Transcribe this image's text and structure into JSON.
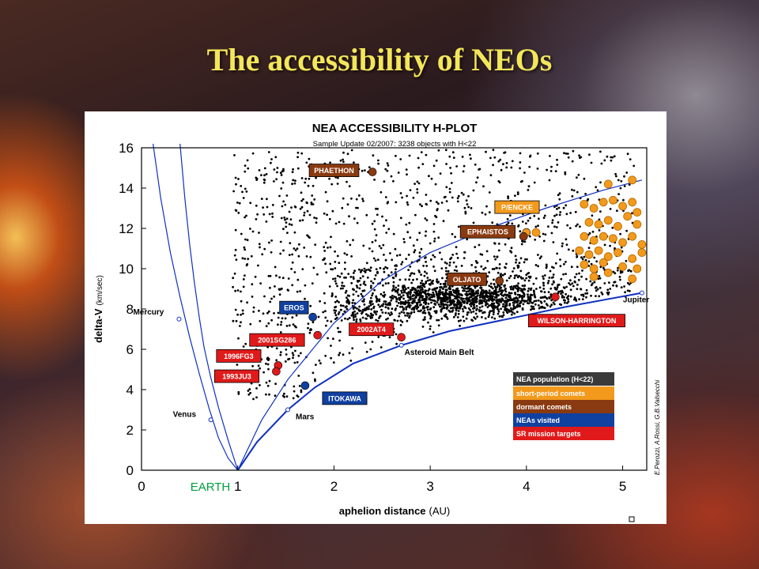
{
  "slide": {
    "title": "The accessibility of NEOs"
  },
  "chart_data": {
    "type": "scatter",
    "title": "NEA ACCESSIBILITY H-PLOT",
    "subtitle": "Sample Update 02/2007: 3238 objects with H<22",
    "xlabel": "aphelion distance",
    "xlabel_unit": "(AU)",
    "ylabel": "delta-V",
    "ylabel_unit": "(km/sec)",
    "xlim": [
      0,
      5.25
    ],
    "ylim": [
      0,
      16
    ],
    "x_ticks": [
      "0",
      "1",
      "2",
      "3",
      "4",
      "5"
    ],
    "y_ticks": [
      "0",
      "2",
      "4",
      "6",
      "8",
      "10",
      "12",
      "14",
      "16"
    ],
    "x_tick_values": [
      0,
      1,
      2,
      3,
      4,
      5
    ],
    "y_tick_values": [
      0,
      2,
      4,
      6,
      8,
      10,
      12,
      14,
      16
    ],
    "grid": false,
    "origin_label": "EARTH",
    "planets": [
      {
        "name": "Mercury",
        "x": 0.39,
        "y": 7.5
      },
      {
        "name": "Venus",
        "x": 0.72,
        "y": 2.5
      },
      {
        "name": "Mars",
        "x": 1.52,
        "y": 3.0
      },
      {
        "name": "Jupiter",
        "x": 5.2,
        "y": 8.8
      },
      {
        "name": "Asteroid Main Belt",
        "x": 2.7,
        "y": 6.2
      }
    ],
    "curves": [
      {
        "points": [
          [
            0.12,
            16.2
          ],
          [
            0.2,
            13.5
          ],
          [
            0.3,
            10.8
          ],
          [
            0.4,
            8.6
          ],
          [
            0.5,
            6.6
          ],
          [
            0.6,
            4.8
          ],
          [
            0.7,
            3.1
          ],
          [
            0.8,
            1.6
          ],
          [
            0.9,
            0.6
          ],
          [
            1.0,
            0
          ]
        ]
      },
      {
        "points": [
          [
            0.4,
            16.2
          ],
          [
            0.45,
            13.5
          ],
          [
            0.5,
            11.2
          ],
          [
            0.55,
            9.3
          ],
          [
            0.6,
            7.6
          ],
          [
            0.65,
            6.1
          ],
          [
            0.72,
            4.6
          ],
          [
            0.8,
            3.1
          ],
          [
            0.9,
            1.5
          ],
          [
            1.0,
            0
          ]
        ]
      },
      {
        "points": [
          [
            1.0,
            0
          ],
          [
            1.2,
            1.4
          ],
          [
            1.52,
            3.0
          ],
          [
            1.8,
            4.1
          ],
          [
            2.2,
            5.3
          ],
          [
            2.7,
            6.2
          ],
          [
            3.2,
            6.9
          ],
          [
            3.8,
            7.5
          ],
          [
            4.4,
            8.1
          ],
          [
            5.2,
            8.8
          ]
        ]
      },
      {
        "points": [
          [
            1.0,
            0
          ],
          [
            1.25,
            2.5
          ],
          [
            1.52,
            4.5
          ],
          [
            2.0,
            7.3
          ],
          [
            2.5,
            9.4
          ],
          [
            3.0,
            10.8
          ],
          [
            3.6,
            12.0
          ],
          [
            4.2,
            13.0
          ],
          [
            4.8,
            13.9
          ],
          [
            5.2,
            14.4
          ]
        ]
      }
    ],
    "point_color": "#000000",
    "named_objects": [
      {
        "label": "PHAETHON",
        "x": 2.4,
        "y": 14.8,
        "category": "dormant comets"
      },
      {
        "label": "P/ENCKE",
        "x": 4.0,
        "y": 11.8,
        "category": "short-period comets"
      },
      {
        "label": "EPHAISTOS",
        "x": 3.97,
        "y": 11.6,
        "category": "dormant comets"
      },
      {
        "label": "OLJATO",
        "x": 3.72,
        "y": 9.4,
        "category": "dormant comets"
      },
      {
        "label": "WILSON-HARRINGTON",
        "x": 4.3,
        "y": 8.6,
        "category": "SR mission targets"
      },
      {
        "label": "EROS",
        "x": 1.78,
        "y": 7.6,
        "category": "NEAs visited"
      },
      {
        "label": "2001SG286",
        "x": 1.83,
        "y": 6.7,
        "category": "SR mission targets"
      },
      {
        "label": "2002AT4",
        "x": 2.7,
        "y": 6.6,
        "category": "SR mission targets"
      },
      {
        "label": "1996FG3",
        "x": 1.42,
        "y": 5.2,
        "category": "SR mission targets"
      },
      {
        "label": "1993JU3",
        "x": 1.4,
        "y": 4.9,
        "category": "SR mission targets"
      },
      {
        "label": "ITOKAWA",
        "x": 1.7,
        "y": 4.2,
        "category": "NEAs visited"
      }
    ],
    "short_period_comets": [
      [
        4.85,
        14.2
      ],
      [
        5.1,
        14.4
      ],
      [
        4.6,
        13.2
      ],
      [
        4.7,
        13.0
      ],
      [
        4.8,
        13.3
      ],
      [
        4.9,
        13.4
      ],
      [
        5.0,
        13.1
      ],
      [
        5.1,
        13.3
      ],
      [
        5.15,
        12.8
      ],
      [
        4.65,
        12.3
      ],
      [
        4.75,
        12.2
      ],
      [
        4.85,
        12.4
      ],
      [
        4.95,
        12.1
      ],
      [
        5.05,
        12.6
      ],
      [
        5.15,
        12.2
      ],
      [
        4.1,
        11.8
      ],
      [
        4.6,
        11.6
      ],
      [
        4.7,
        11.4
      ],
      [
        4.8,
        11.6
      ],
      [
        4.9,
        11.5
      ],
      [
        5.0,
        11.3
      ],
      [
        5.1,
        11.6
      ],
      [
        5.2,
        11.2
      ],
      [
        4.55,
        10.9
      ],
      [
        4.65,
        10.7
      ],
      [
        4.75,
        10.9
      ],
      [
        4.85,
        10.6
      ],
      [
        4.95,
        10.8
      ],
      [
        5.1,
        10.5
      ],
      [
        5.2,
        10.8
      ],
      [
        4.6,
        10.2
      ],
      [
        4.7,
        10.0
      ],
      [
        4.8,
        10.3
      ],
      [
        5.0,
        10.1
      ],
      [
        5.15,
        10.0
      ],
      [
        4.7,
        9.6
      ],
      [
        4.85,
        9.8
      ],
      [
        5.1,
        9.5
      ]
    ],
    "legend": {
      "position": "right",
      "header": "NEA population (H<22)",
      "entries": [
        {
          "label": "short-period comets",
          "color": "#f39a1c"
        },
        {
          "label": "dormant comets",
          "color": "#8a3a10"
        },
        {
          "label": "NEAs visited",
          "color": "#1040a0"
        },
        {
          "label": "SR mission targets",
          "color": "#e01a1a"
        }
      ],
      "header_color": "#3a3a3a"
    },
    "credit": "E.Perozzi, A.Rossi, G.B.Valsecchi"
  }
}
